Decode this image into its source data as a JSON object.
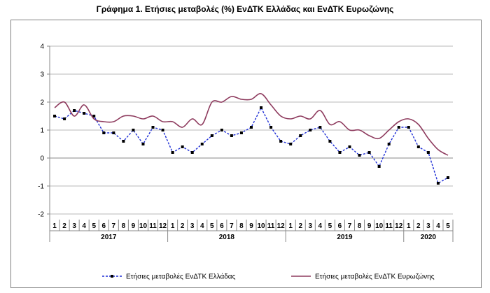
{
  "chart_data": {
    "type": "line",
    "title": "Γράφημα 1. Ετήσιες μεταβολές (%) ΕνΔΤΚ Ελλάδας και ΕνΔΤΚ Ευρωζώνης",
    "ylim": [
      -2,
      4
    ],
    "yticks": [
      -2,
      -1,
      0,
      1,
      2,
      3,
      4
    ],
    "grid": true,
    "legend_position": "bottom",
    "categories": [
      "1",
      "2",
      "3",
      "4",
      "5",
      "6",
      "7",
      "8",
      "9",
      "10",
      "11",
      "12",
      "1",
      "2",
      "3",
      "4",
      "5",
      "6",
      "7",
      "8",
      "9",
      "10",
      "11",
      "12",
      "1",
      "2",
      "3",
      "4",
      "5",
      "6",
      "7",
      "8",
      "9",
      "10",
      "11",
      "12",
      "1",
      "2",
      "3",
      "4",
      "5"
    ],
    "years": [
      {
        "label": "2017",
        "start": 0,
        "count": 12
      },
      {
        "label": "2018",
        "start": 12,
        "count": 12
      },
      {
        "label": "2019",
        "start": 24,
        "count": 12
      },
      {
        "label": "2020",
        "start": 36,
        "count": 5
      }
    ],
    "series": [
      {
        "name": "Ετήσιες μεταβολές ΕνΔΤΚ Ελλάδας",
        "color": "#1f2fd6",
        "style": "dashed-markers",
        "values": [
          1.5,
          1.4,
          1.7,
          1.6,
          1.5,
          0.9,
          0.9,
          0.6,
          1.0,
          0.5,
          1.1,
          1.0,
          0.2,
          0.4,
          0.2,
          0.5,
          0.8,
          1.0,
          0.8,
          0.9,
          1.1,
          1.8,
          1.1,
          0.6,
          0.5,
          0.8,
          1.0,
          1.1,
          0.6,
          0.2,
          0.4,
          0.1,
          0.2,
          -0.3,
          0.5,
          1.1,
          1.1,
          0.4,
          0.2,
          -0.9,
          -0.7
        ]
      },
      {
        "name": "Ετήσιες μεταβολές ΕνΔΤΚ Ευρωζώνης",
        "color": "#8e3b5e",
        "style": "solid",
        "values": [
          1.8,
          2.0,
          1.5,
          1.9,
          1.4,
          1.3,
          1.3,
          1.5,
          1.5,
          1.4,
          1.5,
          1.3,
          1.3,
          1.1,
          1.4,
          1.2,
          2.0,
          2.0,
          2.2,
          2.1,
          2.1,
          2.3,
          1.9,
          1.5,
          1.4,
          1.5,
          1.4,
          1.7,
          1.2,
          1.3,
          1.0,
          1.0,
          0.8,
          0.7,
          1.0,
          1.3,
          1.4,
          1.2,
          0.7,
          0.3,
          0.1
        ]
      }
    ]
  }
}
